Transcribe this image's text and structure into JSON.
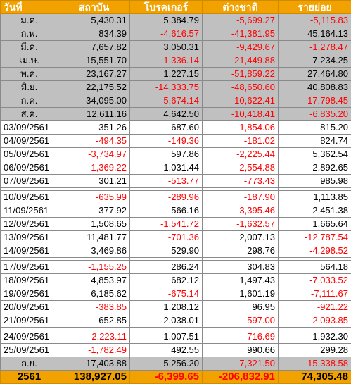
{
  "colors": {
    "header_bg": "#f2a200",
    "month_bg": "#c0c0c0",
    "negative": "#ff0000"
  },
  "header": [
    "วันที่",
    "สถาบัน",
    "โบรคเกอร์",
    "ต่างชาติ",
    "รายย่อย"
  ],
  "months": [
    [
      "ม.ค.",
      "5,430.31",
      "5,384.79",
      "-5,699.27",
      "-5,115.83"
    ],
    [
      "ก.พ.",
      "834.39",
      "-4,616.57",
      "-41,381.95",
      "45,164.13"
    ],
    [
      "มี.ค.",
      "7,657.82",
      "3,050.31",
      "-9,429.67",
      "-1,278.47"
    ],
    [
      "เม.ษ.",
      "15,551.70",
      "-1,336.14",
      "-21,449.88",
      "7,234.25"
    ],
    [
      "พ.ค.",
      "23,167.27",
      "1,227.15",
      "-51,859.22",
      "27,464.80"
    ],
    [
      "มิ.ย.",
      "22,175.52",
      "-14,333.75",
      "-48,650.60",
      "40,808.83"
    ],
    [
      "ก.ค.",
      "34,095.00",
      "-5,674.14",
      "-10,622.41",
      "-17,798.45"
    ],
    [
      "ส.ค.",
      "12,611.16",
      "4,642.50",
      "-10,418.41",
      "-6,835.20"
    ]
  ],
  "week1": [
    [
      "03/09/2561",
      "351.26",
      "687.60",
      "-1,854.06",
      "815.20"
    ],
    [
      "04/09/2561",
      "-494.35",
      "-149.36",
      "-181.02",
      "824.74"
    ],
    [
      "05/09/2561",
      "-3,734.97",
      "597.86",
      "-2,225.44",
      "5,362.54"
    ],
    [
      "06/09/2561",
      "-1,369.22",
      "1,031.44",
      "-2,554.88",
      "2,892.65"
    ],
    [
      "07/09/2561",
      "301.21",
      "-513.77",
      "-773.43",
      "985.98"
    ]
  ],
  "week2": [
    [
      "10/09/2561",
      "-635.99",
      "-289.96",
      "-187.90",
      "1,113.85"
    ],
    [
      "11/09/2561",
      "377.92",
      "566.16",
      "-3,395.46",
      "2,451.38"
    ],
    [
      "12/09/2561",
      "1,508.65",
      "-1,541.72",
      "-1,632.57",
      "1,665.64"
    ],
    [
      "13/09/2561",
      "11,481.77",
      "-701.36",
      "2,007.13",
      "-12,787.54"
    ],
    [
      "14/09/2561",
      "3,469.86",
      "529.90",
      "298.76",
      "-4,298.52"
    ]
  ],
  "week3": [
    [
      "17/09/2561",
      "-1,155.25",
      "286.24",
      "304.83",
      "564.18"
    ],
    [
      "18/09/2561",
      "4,853.97",
      "682.12",
      "1,497.43",
      "-7,033.52"
    ],
    [
      "19/09/2561",
      "6,185.62",
      "-675.14",
      "1,601.19",
      "-7,111.67"
    ],
    [
      "20/09/2561",
      "-383.85",
      "1,208.12",
      "96.95",
      "-921.22"
    ],
    [
      "21/09/2561",
      "652.85",
      "2,038.01",
      "-597.00",
      "-2,093.85"
    ]
  ],
  "week4": [
    [
      "24/09/2561",
      "-2,223.11",
      "1,007.51",
      "-716.69",
      "1,932.30"
    ],
    [
      "25/09/2561",
      "-1,782.49",
      "492.55",
      "990.66",
      "299.28"
    ]
  ],
  "current_month": [
    "ก.ย.",
    "17,403.88",
    "5,256.20",
    "-7,321.50",
    "-15,338.58"
  ],
  "total": [
    "2561",
    "138,927.05",
    "-6,399.65",
    "-206,832.91",
    "74,305.48"
  ]
}
